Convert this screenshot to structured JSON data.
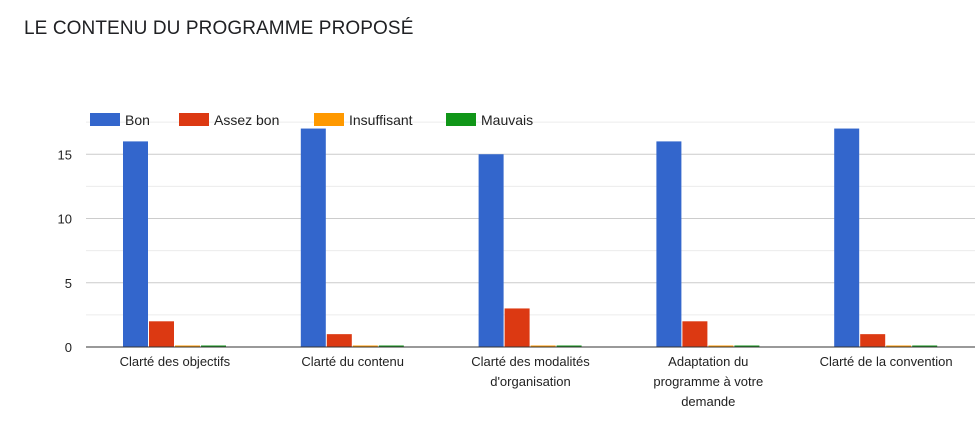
{
  "title": "LE CONTENU DU PROGRAMME PROPOSÉ",
  "chart_data": {
    "type": "bar",
    "title": "LE CONTENU DU PROGRAMME PROPOSÉ",
    "categories": [
      [
        "Clarté des objectifs"
      ],
      [
        "Clarté du contenu"
      ],
      [
        "Clarté des modalités",
        "d'organisation"
      ],
      [
        "Adaptation du",
        "programme à votre",
        "demande"
      ],
      [
        "Clarté de la convention"
      ]
    ],
    "series": [
      {
        "name": "Bon",
        "color": "#3366cc",
        "values": [
          16,
          17,
          15,
          16,
          17
        ]
      },
      {
        "name": "Assez bon",
        "color": "#dc3912",
        "values": [
          2,
          1,
          3,
          2,
          1
        ]
      },
      {
        "name": "Insuffisant",
        "color": "#ff9900",
        "values": [
          0,
          0,
          0,
          0,
          0
        ]
      },
      {
        "name": "Mauvais",
        "color": "#109618",
        "values": [
          0,
          0,
          0,
          0,
          0
        ]
      }
    ],
    "yticks": [
      0,
      5,
      10,
      15
    ],
    "ylim": [
      0,
      17.5
    ],
    "grid": true,
    "legend": "top-left"
  }
}
